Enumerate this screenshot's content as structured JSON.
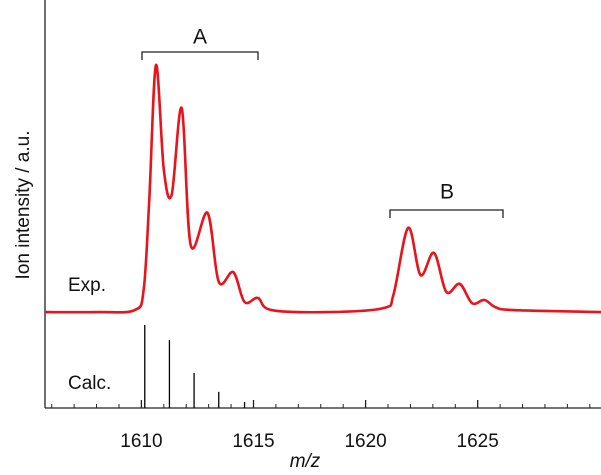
{
  "chart_data": {
    "type": "spectrum",
    "xlabel": "m/z",
    "ylabel": "Ion intensity / a.u.",
    "xlim": [
      1605.7,
      1630.5
    ],
    "xticks": [
      1610,
      1615,
      1620,
      1625
    ],
    "xminorticks": [
      1606,
      1607,
      1608,
      1609,
      1611,
      1612,
      1613,
      1614,
      1616,
      1617,
      1618,
      1619,
      1621,
      1622,
      1623,
      1624,
      1626,
      1627,
      1628,
      1629,
      1630
    ],
    "ylim": [
      0,
      100
    ],
    "series": [
      {
        "name": "Exp.",
        "color": "#e8141c",
        "x": [
          1605.7,
          1608.1,
          1609.7,
          1610.1,
          1610.35,
          1610.65,
          1611.0,
          1611.35,
          1611.8,
          1612.2,
          1612.95,
          1613.45,
          1614.1,
          1614.6,
          1615.2,
          1615.8,
          1618.4,
          1620.8,
          1621.25,
          1621.9,
          1622.45,
          1623.05,
          1623.6,
          1624.2,
          1624.75,
          1625.3,
          1625.8,
          1626.6,
          1630.5
        ],
        "values": [
          23.8,
          23.8,
          24.3,
          29.3,
          51.6,
          85.1,
          59.1,
          52.9,
          74.4,
          40.4,
          48.4,
          31.3,
          33.7,
          26.3,
          27.3,
          24.3,
          23.8,
          24.8,
          28.3,
          44.7,
          33.0,
          38.5,
          28.8,
          30.8,
          26.0,
          26.8,
          25.0,
          24.3,
          23.8
        ]
      },
      {
        "name": "Calc.",
        "color": "#000000",
        "x": [
          1610.15,
          1611.25,
          1612.35,
          1613.45,
          1614.6
        ],
        "values": [
          20.6,
          16.9,
          8.7,
          4.0,
          1.5
        ]
      }
    ],
    "annotations": [
      "A",
      "B"
    ]
  }
}
